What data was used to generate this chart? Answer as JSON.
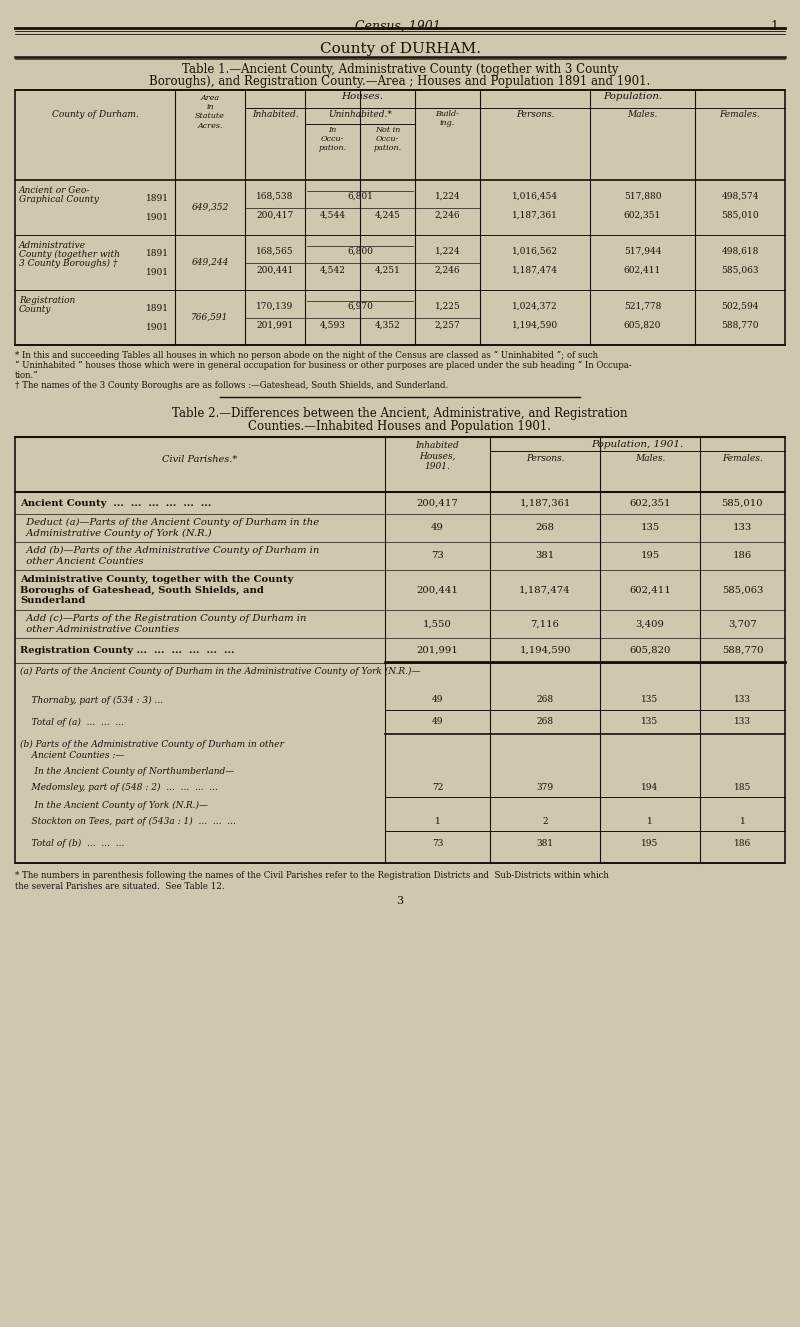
{
  "bg_color": "#cfc8ae",
  "page_title": "Census, 1901.",
  "page_number": "1",
  "county_title": "County of DURHAM.",
  "table1_title_line1": "Table 1.—Ancient County, Administrative County (together with 3 County",
  "table1_title_line2": "Boroughs), and Registration County.—Area ; Houses and Population 1891 and 1901.",
  "table1_footnotes": [
    "* In this and succeeding Tables all houses in which no person abode on the night of the Census are classed as “ Uninhabited ”; of such",
    "“ Uninhabited ” houses those which were in general occupation for business or other purposes are placed under the sub heading “ In Occupa-",
    "tion.”",
    "† The names of the 3 County Boroughs are as follows :—Gateshead, South Shields, and Sunderland."
  ],
  "table2_title_line1": "Table 2.—Differences between the Ancient, Administrative, and Registration",
  "table2_title_line2": "Counties.—Inhabited Houses and Population 1901.",
  "page_number_bottom": "3"
}
